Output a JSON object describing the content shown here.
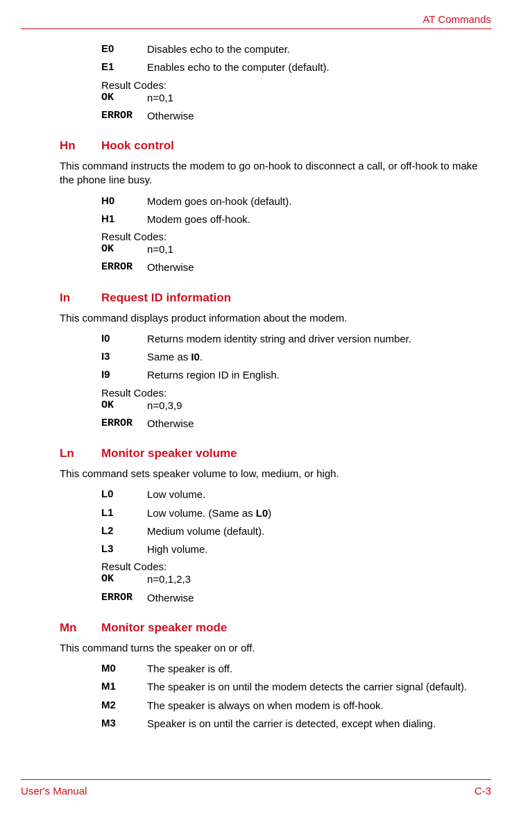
{
  "colors": {
    "accent": "#cf1020",
    "text": "#000000",
    "bg": "#ffffff"
  },
  "fonts": {
    "body_pt": 15,
    "heading_pt": 17,
    "mono_family": "Courier New"
  },
  "header": {
    "page_title": "AT Commands"
  },
  "footer": {
    "left": "User's Manual",
    "right": "C-3"
  },
  "intro": {
    "rows": [
      {
        "code": "E0",
        "desc": "Disables echo to the computer."
      },
      {
        "code": "E1",
        "desc": "Enables echo to the computer (default)."
      }
    ],
    "result_label": "Result Codes:",
    "results": [
      {
        "code": "OK",
        "desc": "n=0,1"
      },
      {
        "code": "ERROR",
        "desc": "Otherwise"
      }
    ]
  },
  "sections": {
    "hn": {
      "code": "Hn",
      "title": "Hook control",
      "desc": "This command instructs the modem to go on-hook to disconnect a call, or off-hook to make the phone line busy.",
      "rows": [
        {
          "code": "H0",
          "desc": "Modem goes on-hook (default)."
        },
        {
          "code": "H1",
          "desc": "Modem goes off-hook."
        }
      ],
      "result_label": "Result Codes:",
      "results": [
        {
          "code": "OK",
          "desc": "n=0,1"
        },
        {
          "code": "ERROR",
          "desc": "Otherwise"
        }
      ]
    },
    "in": {
      "code": "In",
      "title": "Request ID information",
      "desc": "This command displays product information about the modem.",
      "rows": [
        {
          "code": "I0",
          "desc": "Returns modem identity string and driver version number."
        },
        {
          "code": "I3",
          "desc_prefix": "Same as ",
          "desc_bold": "I0",
          "desc_suffix": "."
        },
        {
          "code": "I9",
          "desc": "Returns region ID in English."
        }
      ],
      "result_label": "Result Codes:",
      "results": [
        {
          "code": "OK",
          "desc": "n=0,3,9"
        },
        {
          "code": "ERROR",
          "desc": "Otherwise"
        }
      ]
    },
    "ln": {
      "code": "Ln",
      "title": "Monitor speaker volume",
      "desc": "This command sets speaker volume to low, medium, or high.",
      "rows": [
        {
          "code": "L0",
          "desc": "Low volume."
        },
        {
          "code": "L1",
          "desc_prefix": "Low volume. (Same as ",
          "desc_bold": "L0",
          "desc_suffix": ")"
        },
        {
          "code": "L2",
          "desc": "Medium volume (default)."
        },
        {
          "code": "L3",
          "desc": "High volume."
        }
      ],
      "result_label": "Result Codes:",
      "results": [
        {
          "code": "OK",
          "desc": "n=0,1,2,3"
        },
        {
          "code": "ERROR",
          "desc": "Otherwise"
        }
      ]
    },
    "mn": {
      "code": "Mn",
      "title": "Monitor speaker mode",
      "desc": "This command turns the speaker on or off.",
      "rows": [
        {
          "code": "M0",
          "desc": "The speaker is off."
        },
        {
          "code": "M1",
          "desc": "The speaker is on until the modem detects the carrier signal (default)."
        },
        {
          "code": "M2",
          "desc": "The speaker is always on when modem is off-hook."
        },
        {
          "code": "M3",
          "desc": "Speaker is on until the carrier is detected, except when dialing."
        }
      ]
    }
  }
}
